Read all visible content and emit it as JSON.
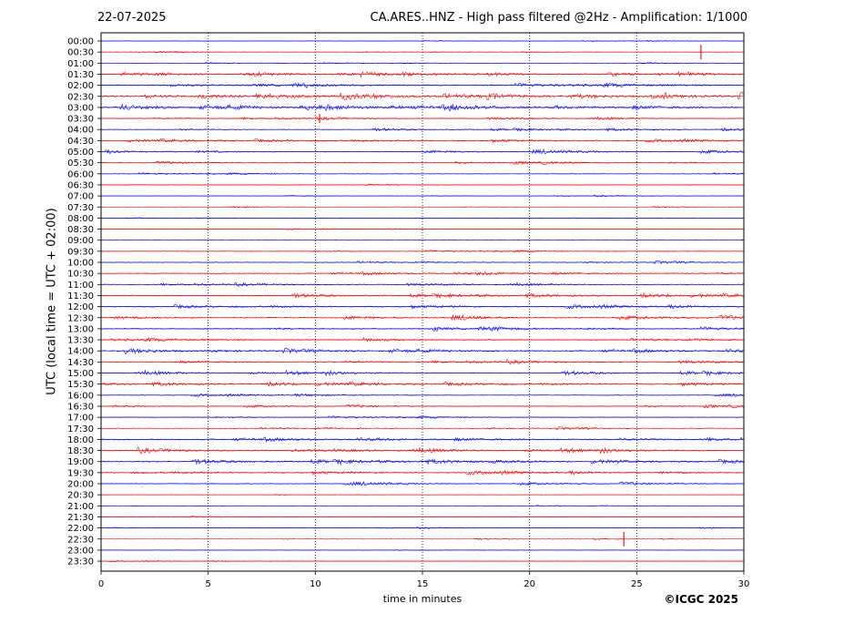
{
  "header": {
    "date": "22-07-2025",
    "title": "CA.ARES..HNZ - High pass filtered @2Hz - Amplification: 1/1000"
  },
  "footer": {
    "copyright": "©ICGC 2025"
  },
  "colors": {
    "red_trace": "#ff0000",
    "blue_trace": "#0000ff",
    "grid": "#000000",
    "background": "#ffffff"
  },
  "chart_data": {
    "type": "line",
    "title": "CA.ARES..HNZ - High pass filtered @2Hz - Amplification: 1/1000",
    "xlabel": "time in minutes",
    "ylabel": "UTC (local time = UTC + 02:00)",
    "xlim": [
      0,
      30
    ],
    "xticks": [
      0,
      5,
      10,
      15,
      20,
      25,
      30
    ],
    "grid": "vertical dotted at x ticks",
    "row_colors_alternate": [
      "blue",
      "red"
    ],
    "rows": [
      "00:00",
      "00:30",
      "01:00",
      "01:30",
      "02:00",
      "02:30",
      "03:00",
      "03:30",
      "04:00",
      "04:30",
      "05:00",
      "05:30",
      "06:00",
      "06:30",
      "07:00",
      "07:30",
      "08:00",
      "08:30",
      "09:00",
      "09:30",
      "10:00",
      "10:30",
      "11:00",
      "11:30",
      "12:00",
      "12:30",
      "13:00",
      "13:30",
      "14:00",
      "14:30",
      "15:00",
      "15:30",
      "16:00",
      "16:30",
      "17:00",
      "17:30",
      "18:00",
      "18:30",
      "19:00",
      "19:30",
      "20:00",
      "20:30",
      "21:00",
      "21:30",
      "22:00",
      "22:30",
      "23:00",
      "23:30"
    ],
    "activity_level": [
      0.05,
      0.1,
      0.05,
      0.5,
      0.6,
      1.0,
      0.8,
      0.3,
      0.3,
      0.4,
      0.5,
      0.3,
      0.2,
      0.05,
      0.05,
      0.05,
      0.05,
      0.05,
      0.05,
      0.2,
      0.3,
      0.4,
      0.3,
      0.5,
      0.5,
      0.6,
      0.5,
      0.5,
      0.6,
      0.4,
      0.5,
      0.5,
      0.3,
      0.3,
      0.3,
      0.3,
      0.6,
      0.6,
      0.6,
      0.5,
      0.4,
      0.05,
      0.05,
      0.05,
      0.05,
      0.05,
      0.05,
      0.05
    ],
    "spikes": [
      {
        "row": "00:30",
        "x_min": 28.0,
        "amplitude": "large"
      },
      {
        "row": "03:30",
        "x_min": 10.2,
        "amplitude": "medium"
      },
      {
        "row": "22:30",
        "x_min": 24.4,
        "amplitude": "large"
      }
    ]
  }
}
